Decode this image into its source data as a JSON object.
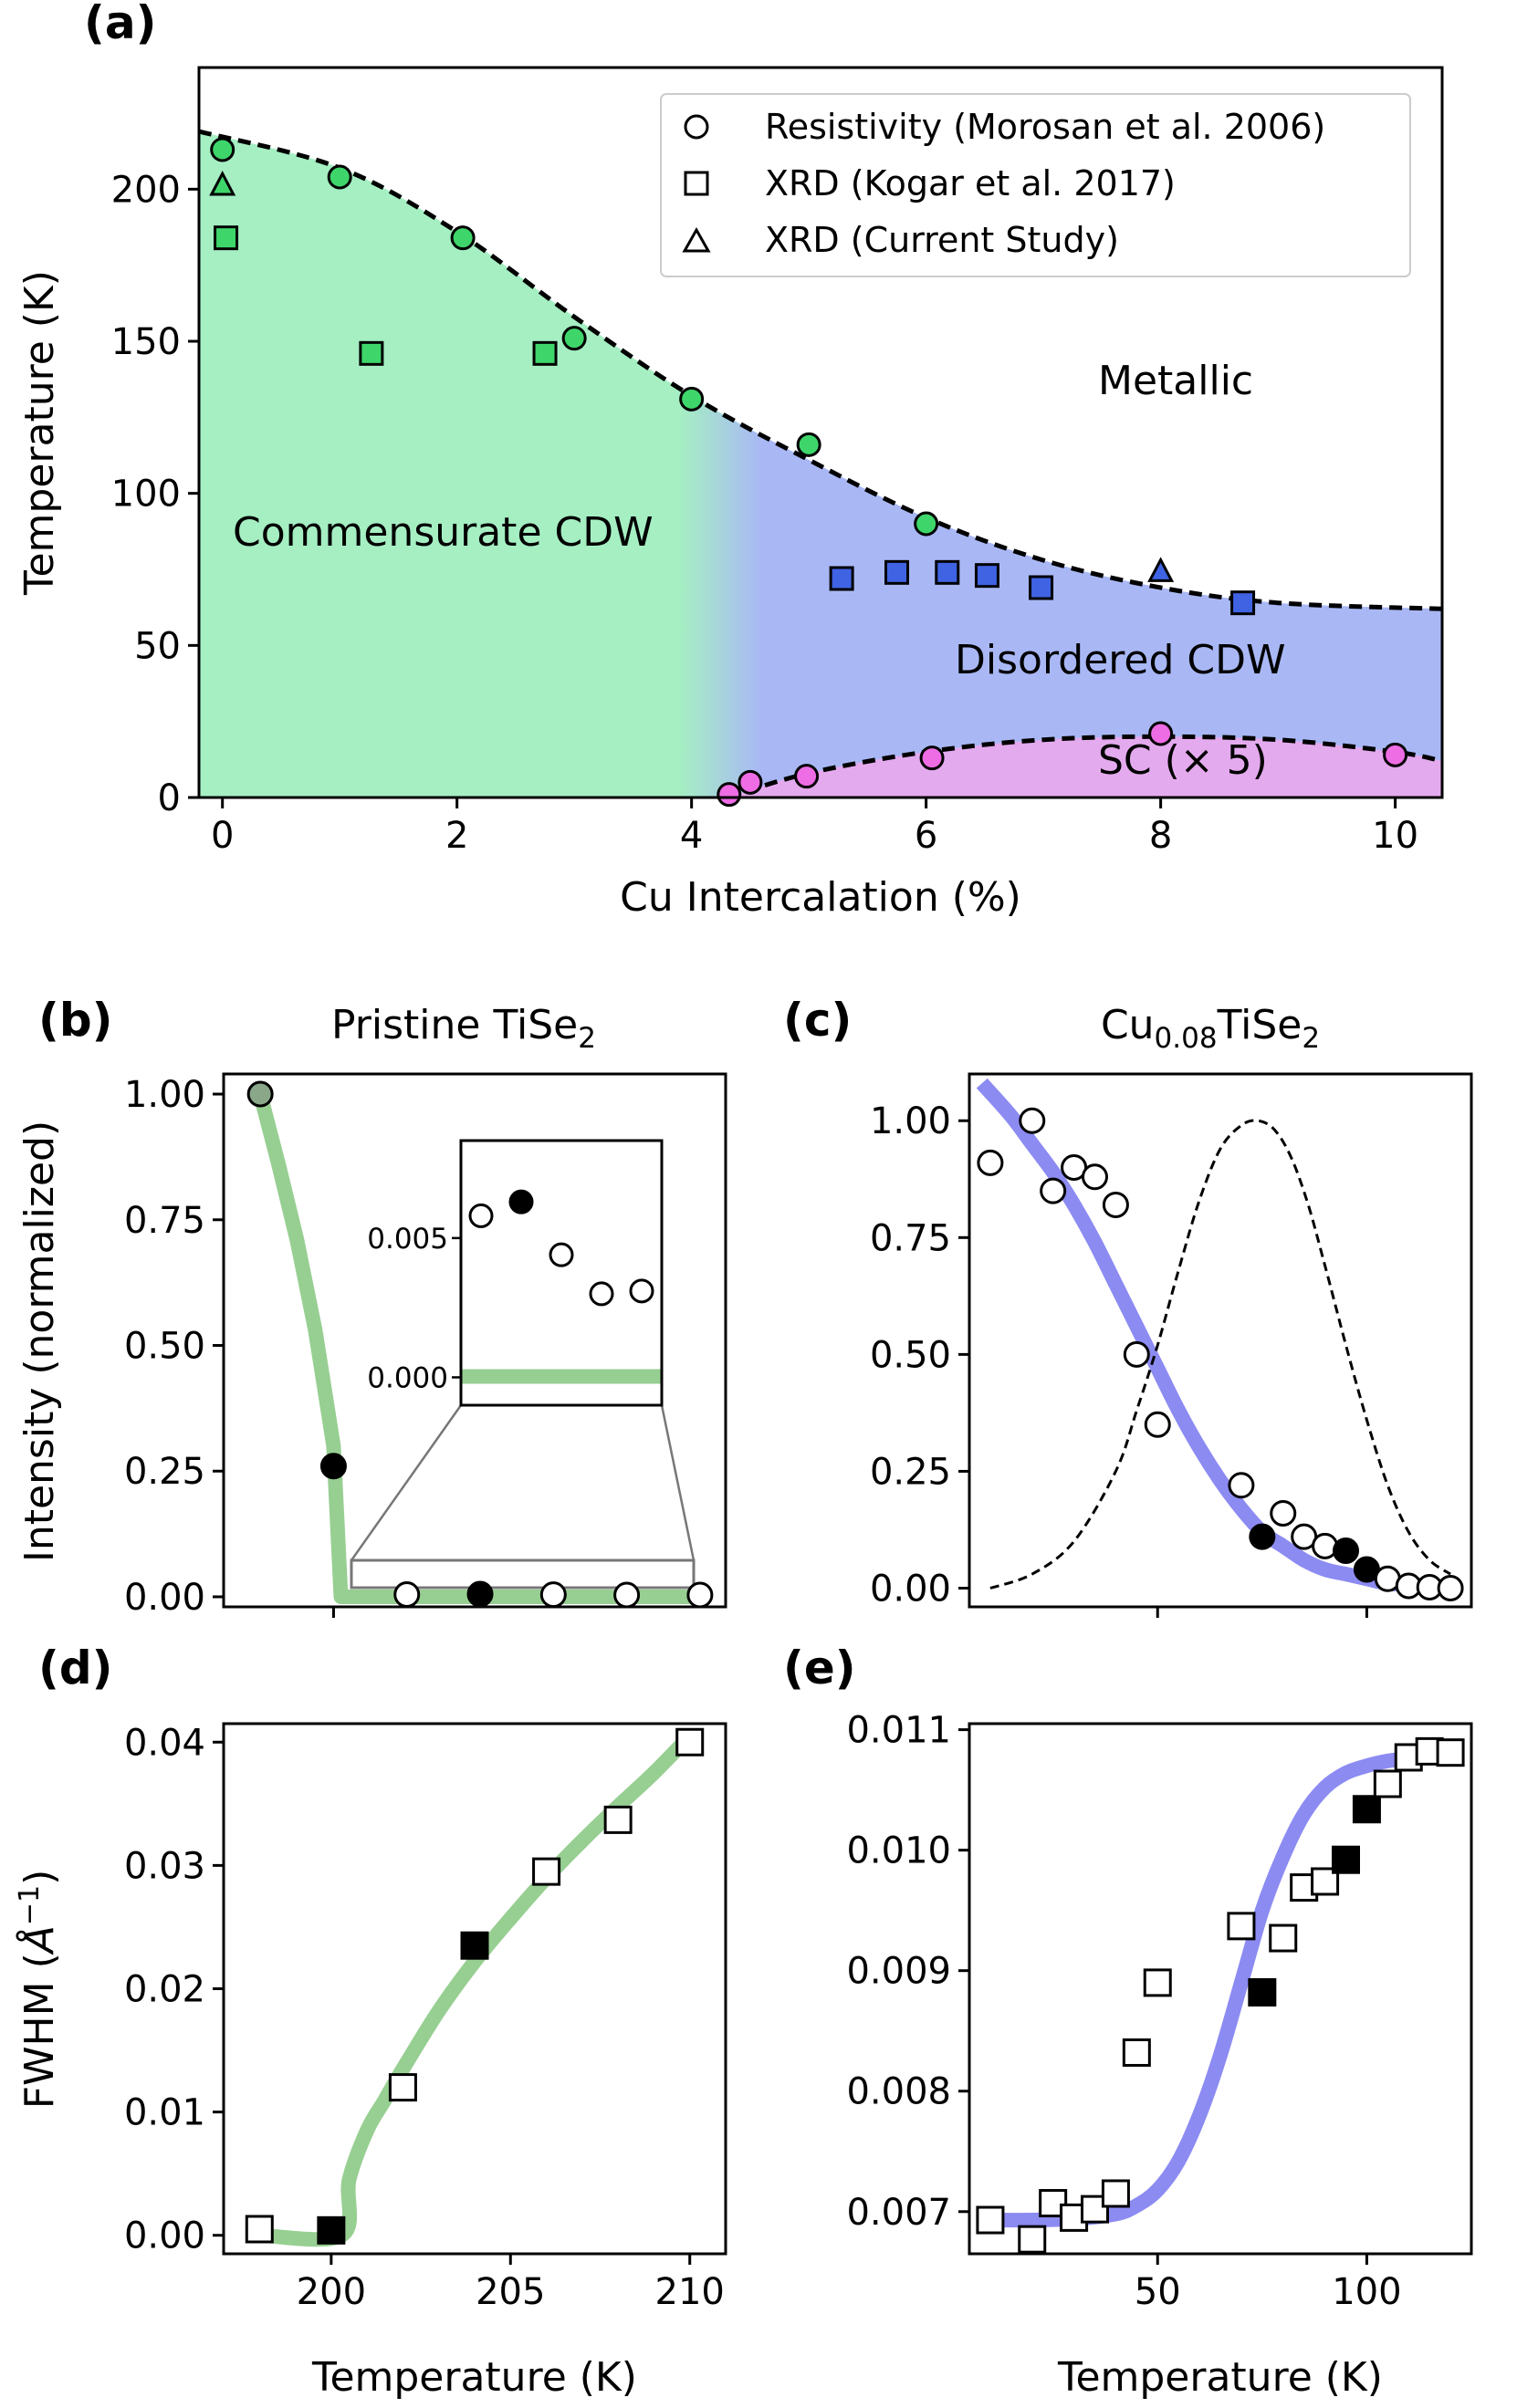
{
  "figure": {
    "panel_labels": [
      "(a)",
      "(b)",
      "(c)",
      "(d)",
      "(e)"
    ],
    "title_b": "Pristine TiSe",
    "title_b_sub": "2",
    "title_c_pre": "Cu",
    "title_c_sub1": "0.08",
    "title_c_mid": "TiSe",
    "title_c_sub2": "2",
    "ylabel_bc": "Intensity (normalized)",
    "ylabel_de_pre": "FWHM (",
    "ylabel_de_unit": "Å",
    "ylabel_de_sup": "−1",
    "ylabel_de_post": ")",
    "xlabel_bottom": "Temperature (K)"
  },
  "colors": {
    "ccdw_green": "#a5efc3",
    "dcdw_blue": "#a9b8f5",
    "sc_pink": "#e4aaee",
    "marker_green": "#3ed66b",
    "marker_blue": "#3f63e3",
    "marker_pink": "#ee6ce4",
    "fit_green": "#97cf92",
    "fit_blue": "#8c8bf2"
  },
  "chart_data": [
    {
      "id": "a",
      "type": "scatter",
      "xlabel": "Cu Intercalation (%)",
      "ylabel": "Temperature (K)",
      "xlim": [
        -0.2,
        10.4
      ],
      "ylim": [
        0,
        240
      ],
      "xticks": [
        0,
        2,
        4,
        6,
        8,
        10
      ],
      "yticks": [
        0,
        50,
        100,
        150,
        200
      ],
      "region_labels": {
        "commensurate": "Commensurate CDW",
        "metallic": "Metallic",
        "disordered": "Disordered CDW",
        "sc": "SC (× 5)"
      },
      "legend": [
        {
          "marker": "circle",
          "label": "Resistivity (Morosan et al. 2006)"
        },
        {
          "marker": "square",
          "label": "XRD (Kogar et al. 2017)"
        },
        {
          "marker": "triangle",
          "label": "XRD (Current Study)"
        }
      ],
      "series": [
        {
          "name": "Resistivity CDW",
          "marker": "circle",
          "x": [
            0,
            1.0,
            2.05,
            3.0,
            4.0,
            5.0,
            6.0
          ],
          "y": [
            213,
            204,
            184,
            151,
            131,
            116,
            90
          ],
          "colors": [
            "green",
            "green",
            "green",
            "green",
            "green",
            "green",
            "green"
          ]
        },
        {
          "name": "XRD Kogar",
          "marker": "square",
          "x": [
            0.03,
            1.27,
            2.75,
            5.28,
            5.75,
            6.18,
            6.52,
            6.98,
            8.7
          ],
          "y": [
            184,
            146,
            146,
            72,
            74,
            74,
            73,
            69,
            64
          ],
          "colors": [
            "green",
            "green",
            "green",
            "blue",
            "blue",
            "blue",
            "blue",
            "blue",
            "blue"
          ]
        },
        {
          "name": "XRD current",
          "marker": "triangle",
          "x": [
            0.0,
            8.0
          ],
          "y": [
            201,
            74
          ],
          "colors": [
            "green",
            "blue"
          ]
        },
        {
          "name": "SC resistivity (x5)",
          "marker": "circle",
          "x": [
            4.32,
            4.5,
            4.98,
            6.05,
            8.0,
            10.0
          ],
          "y": [
            1,
            5,
            7,
            13,
            21,
            14
          ],
          "colors": [
            "pink",
            "pink",
            "pink",
            "pink",
            "pink",
            "pink"
          ]
        }
      ],
      "fit_cdw": {
        "x": [
          -0.2,
          1,
          2,
          3,
          4,
          5,
          6,
          7,
          8,
          9,
          10.4
        ],
        "y": [
          219,
          207,
          186,
          158,
          132,
          111,
          92,
          78,
          69,
          64,
          62
        ]
      },
      "fit_sc": {
        "x": [
          4.3,
          5,
          6,
          7,
          8,
          9,
          10,
          10.4
        ],
        "y": [
          0,
          8,
          15,
          19,
          20,
          19,
          15,
          12
        ]
      },
      "cc_dc_transition_x": [
        3.9,
        4.6
      ]
    },
    {
      "id": "b",
      "type": "scatter",
      "xlim": [
        197,
        210.7
      ],
      "ylim": [
        -0.02,
        1.04
      ],
      "yticks": [
        0.0,
        0.25,
        0.5,
        0.75,
        1.0
      ],
      "ytick_labels": [
        "0.00",
        "0.25",
        "0.50",
        "0.75",
        "1.00"
      ],
      "points": [
        {
          "x": 198,
          "y": 1.0,
          "fill": "gray"
        },
        {
          "x": 200,
          "y": 0.26,
          "fill": "black"
        },
        {
          "x": 202,
          "y": 0.0045,
          "fill": "white"
        },
        {
          "x": 204,
          "y": 0.0055,
          "fill": "black"
        },
        {
          "x": 206,
          "y": 0.0043,
          "fill": "white"
        },
        {
          "x": 208,
          "y": 0.0035,
          "fill": "white"
        },
        {
          "x": 210,
          "y": 0.0036,
          "fill": "white"
        }
      ],
      "fit": {
        "x": [
          198,
          198.5,
          199,
          199.5,
          200,
          200.2,
          201,
          210.2
        ],
        "y": [
          1.0,
          0.86,
          0.71,
          0.53,
          0.3,
          0.0,
          0.0,
          0.0
        ]
      },
      "inset": {
        "yticks": [
          0.0,
          0.005
        ],
        "ytick_labels": [
          "0.000",
          "0.005"
        ],
        "points": [
          {
            "x": 202,
            "y": 0.0058,
            "fill": "white"
          },
          {
            "x": 204,
            "y": 0.0063,
            "fill": "black"
          },
          {
            "x": 206,
            "y": 0.0044,
            "fill": "white"
          },
          {
            "x": 208,
            "y": 0.003,
            "fill": "white"
          },
          {
            "x": 210,
            "y": 0.0031,
            "fill": "white"
          }
        ]
      }
    },
    {
      "id": "c",
      "type": "scatter",
      "xlim": [
        5,
        125
      ],
      "ylim": [
        -0.04,
        1.1
      ],
      "xticks": [
        50,
        100
      ],
      "yticks": [
        0.0,
        0.25,
        0.5,
        0.75,
        1.0
      ],
      "ytick_labels": [
        "0.00",
        "0.25",
        "0.50",
        "0.75",
        "1.00"
      ],
      "points": [
        {
          "x": 10,
          "y": 0.91,
          "fill": "white"
        },
        {
          "x": 20,
          "y": 1.0,
          "fill": "white"
        },
        {
          "x": 25,
          "y": 0.85,
          "fill": "white"
        },
        {
          "x": 30,
          "y": 0.9,
          "fill": "white"
        },
        {
          "x": 35,
          "y": 0.88,
          "fill": "white"
        },
        {
          "x": 40,
          "y": 0.82,
          "fill": "white"
        },
        {
          "x": 45,
          "y": 0.5,
          "fill": "white"
        },
        {
          "x": 50,
          "y": 0.35,
          "fill": "white"
        },
        {
          "x": 70,
          "y": 0.22,
          "fill": "white"
        },
        {
          "x": 75,
          "y": 0.11,
          "fill": "black"
        },
        {
          "x": 80,
          "y": 0.16,
          "fill": "white"
        },
        {
          "x": 85,
          "y": 0.11,
          "fill": "white"
        },
        {
          "x": 90,
          "y": 0.09,
          "fill": "white"
        },
        {
          "x": 95,
          "y": 0.08,
          "fill": "black"
        },
        {
          "x": 100,
          "y": 0.04,
          "fill": "black"
        },
        {
          "x": 105,
          "y": 0.02,
          "fill": "white"
        },
        {
          "x": 110,
          "y": 0.005,
          "fill": "white"
        },
        {
          "x": 115,
          "y": 0.002,
          "fill": "white"
        },
        {
          "x": 120,
          "y": 0.0,
          "fill": "white"
        }
      ],
      "fit": {
        "x": [
          8,
          15,
          20,
          25,
          30,
          35,
          40,
          45,
          50,
          55,
          60,
          65,
          70,
          75,
          80,
          85,
          90,
          95,
          100,
          105,
          110,
          115,
          120
        ],
        "y": [
          1.08,
          1.01,
          0.95,
          0.89,
          0.82,
          0.74,
          0.65,
          0.56,
          0.47,
          0.38,
          0.3,
          0.23,
          0.17,
          0.12,
          0.09,
          0.06,
          0.04,
          0.03,
          0.02,
          0.01,
          0.008,
          0.005,
          0.003
        ]
      },
      "dashed": {
        "x": [
          10,
          20,
          30,
          40,
          45,
          50,
          55,
          60,
          65,
          70,
          74,
          78,
          82,
          86,
          90,
          95,
          100,
          105,
          110,
          115,
          120
        ],
        "y": [
          0.0,
          0.03,
          0.1,
          0.25,
          0.38,
          0.52,
          0.68,
          0.83,
          0.94,
          0.99,
          1.0,
          0.98,
          0.92,
          0.82,
          0.69,
          0.52,
          0.36,
          0.22,
          0.12,
          0.06,
          0.03
        ]
      }
    },
    {
      "id": "d",
      "type": "scatter",
      "xlim": [
        197,
        211
      ],
      "ylim": [
        -0.0015,
        0.0415
      ],
      "xticks": [
        200,
        205,
        210
      ],
      "yticks": [
        0.0,
        0.01,
        0.02,
        0.03,
        0.04
      ],
      "ytick_labels": [
        "0.00",
        "0.01",
        "0.02",
        "0.03",
        "0.04"
      ],
      "points": [
        {
          "x": 198,
          "y": 0.0005,
          "fill": "white"
        },
        {
          "x": 200,
          "y": 0.0004,
          "fill": "black"
        },
        {
          "x": 202,
          "y": 0.012,
          "fill": "white"
        },
        {
          "x": 204,
          "y": 0.0235,
          "fill": "black"
        },
        {
          "x": 206,
          "y": 0.0295,
          "fill": "white"
        },
        {
          "x": 208,
          "y": 0.0337,
          "fill": "white"
        },
        {
          "x": 210,
          "y": 0.04,
          "fill": "white"
        }
      ],
      "fit": {
        "x": [
          198,
          200.3,
          200.5,
          201,
          201.5,
          202,
          203,
          204,
          205,
          206,
          207,
          208,
          209,
          210
        ],
        "y": [
          0.0,
          0.0,
          0.0045,
          0.0085,
          0.011,
          0.0135,
          0.0182,
          0.0222,
          0.0257,
          0.029,
          0.032,
          0.0348,
          0.0375,
          0.0405
        ]
      }
    },
    {
      "id": "e",
      "type": "scatter",
      "xlim": [
        5,
        125
      ],
      "ylim": [
        0.00665,
        0.01105
      ],
      "xticks": [
        50,
        100
      ],
      "yticks": [
        0.007,
        0.008,
        0.009,
        0.01,
        0.011
      ],
      "ytick_labels": [
        "0.007",
        "0.008",
        "0.009",
        "0.010",
        "0.011"
      ],
      "points": [
        {
          "x": 10,
          "y": 0.00693,
          "fill": "white"
        },
        {
          "x": 20,
          "y": 0.00677,
          "fill": "white"
        },
        {
          "x": 25,
          "y": 0.00707,
          "fill": "white"
        },
        {
          "x": 30,
          "y": 0.00695,
          "fill": "white"
        },
        {
          "x": 35,
          "y": 0.00702,
          "fill": "white"
        },
        {
          "x": 40,
          "y": 0.00715,
          "fill": "white"
        },
        {
          "x": 45,
          "y": 0.00832,
          "fill": "white"
        },
        {
          "x": 50,
          "y": 0.0089,
          "fill": "white"
        },
        {
          "x": 70,
          "y": 0.00937,
          "fill": "white"
        },
        {
          "x": 75,
          "y": 0.00882,
          "fill": "black"
        },
        {
          "x": 80,
          "y": 0.00927,
          "fill": "white"
        },
        {
          "x": 85,
          "y": 0.00969,
          "fill": "white"
        },
        {
          "x": 90,
          "y": 0.00974,
          "fill": "white"
        },
        {
          "x": 95,
          "y": 0.00992,
          "fill": "black"
        },
        {
          "x": 100,
          "y": 0.01034,
          "fill": "black"
        },
        {
          "x": 105,
          "y": 0.01055,
          "fill": "white"
        },
        {
          "x": 110,
          "y": 0.01077,
          "fill": "white"
        },
        {
          "x": 115,
          "y": 0.01082,
          "fill": "white"
        },
        {
          "x": 120,
          "y": 0.01081,
          "fill": "white"
        }
      ],
      "fit": {
        "x": [
          8,
          20,
          30,
          40,
          45,
          50,
          55,
          60,
          65,
          70,
          75,
          80,
          85,
          90,
          95,
          100,
          105,
          110,
          115,
          120
        ],
        "y": [
          0.00693,
          0.00693,
          0.00694,
          0.00698,
          0.00705,
          0.00718,
          0.00742,
          0.0078,
          0.0083,
          0.0089,
          0.0095,
          0.00995,
          0.0103,
          0.01052,
          0.01064,
          0.0107,
          0.01074,
          0.01076,
          0.01077,
          0.01078
        ]
      }
    }
  ]
}
